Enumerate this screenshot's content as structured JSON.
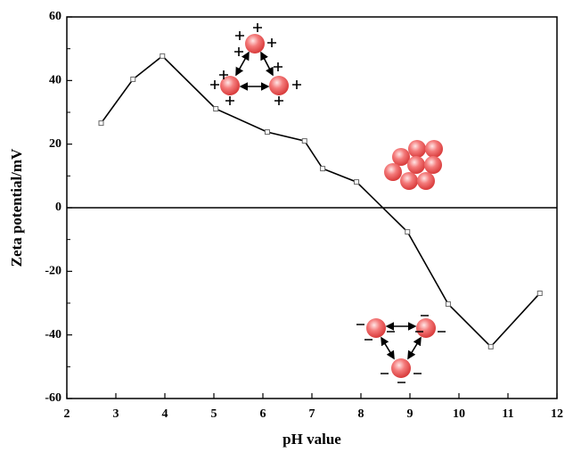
{
  "chart_data": {
    "type": "line",
    "x_label": "pH value",
    "y_label": "Zeta potential/mV",
    "x": [
      2.7,
      3.35,
      3.95,
      5.04,
      6.09,
      6.85,
      7.22,
      7.91,
      8.95,
      9.78,
      10.65,
      11.65
    ],
    "series": [
      {
        "color": "#000000",
        "values": [
          26.6,
          40.4,
          47.7,
          31.1,
          23.8,
          21.0,
          12.3,
          8.1,
          -7.6,
          -30.3,
          -43.7,
          -26.9
        ]
      }
    ],
    "xlim": [
      2,
      12
    ],
    "xticks": [
      2,
      3,
      4,
      5,
      6,
      7,
      8,
      9,
      10,
      11,
      12
    ],
    "ylim": [
      -60,
      60
    ],
    "yticks": [
      -60,
      -40,
      -20,
      0,
      20,
      40,
      60
    ],
    "yminor": [
      -50,
      -30,
      -10,
      10,
      30,
      50
    ],
    "zero_line": true
  }
}
